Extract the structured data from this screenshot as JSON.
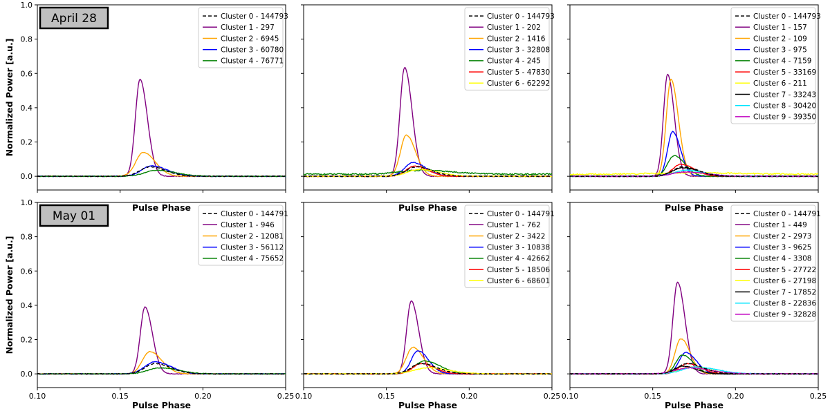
{
  "figure": {
    "ylabel": "Normalized Power [a.u.]",
    "xlabel": "Pulse Phase",
    "x_ticks": [
      0.1,
      0.15,
      0.2,
      0.25
    ],
    "y_ticks": [
      0.0,
      0.2,
      0.4,
      0.6,
      0.8,
      1.0
    ],
    "xlim": [
      0.1,
      0.25
    ],
    "ylim": [
      -0.08,
      1.0
    ],
    "row_labels": [
      "April 28",
      "May 01"
    ]
  },
  "colors": {
    "Cluster 0": "#000000",
    "Cluster 1": "#800080",
    "Cluster 2": "#ffa500",
    "Cluster 3": "#0000ff",
    "Cluster 4": "#008000",
    "Cluster 5": "#ff0000",
    "Cluster 6": "#ffff00",
    "Cluster 7": "#000000",
    "Cluster 8": "#00e5ff",
    "Cluster 9": "#c000c0"
  },
  "chart_data": [
    {
      "type": "line",
      "row": 0,
      "col": 0,
      "grid": false,
      "legend_position": "top-right",
      "series": [
        {
          "name": "Cluster 0 - 144793",
          "dashed": true,
          "peak_x": 0.168,
          "peak_y": 0.055,
          "width": 0.006
        },
        {
          "name": "Cluster 1 - 297",
          "peak_x": 0.162,
          "peak_y": 0.565,
          "width": 0.0028
        },
        {
          "name": "Cluster 2 - 6945",
          "peak_x": 0.164,
          "peak_y": 0.14,
          "width": 0.0045
        },
        {
          "name": "Cluster 3 - 60780",
          "peak_x": 0.169,
          "peak_y": 0.06,
          "width": 0.006
        },
        {
          "name": "Cluster 4 - 76771",
          "peak_x": 0.172,
          "peak_y": 0.035,
          "width": 0.007
        }
      ]
    },
    {
      "type": "line",
      "row": 0,
      "col": 1,
      "grid": false,
      "legend_position": "top-right",
      "series": [
        {
          "name": "Cluster 0 - 144793",
          "dashed": true,
          "peak_x": 0.168,
          "peak_y": 0.055,
          "width": 0.006
        },
        {
          "name": "Cluster 1 - 202",
          "peak_x": 0.161,
          "peak_y": 0.635,
          "width": 0.0028
        },
        {
          "name": "Cluster 2 - 1416",
          "peak_x": 0.162,
          "peak_y": 0.24,
          "width": 0.0035
        },
        {
          "name": "Cluster 3 - 32808",
          "peak_x": 0.166,
          "peak_y": 0.08,
          "width": 0.005
        },
        {
          "name": "Cluster 4 - 245",
          "peak_x": 0.17,
          "peak_y": 0.035,
          "width": 0.012,
          "baseline": 0.012
        },
        {
          "name": "Cluster 5 - 47830",
          "peak_x": 0.167,
          "peak_y": 0.06,
          "width": 0.005
        },
        {
          "name": "Cluster 6 - 62292",
          "peak_x": 0.17,
          "peak_y": 0.04,
          "width": 0.007
        }
      ]
    },
    {
      "type": "line",
      "row": 0,
      "col": 2,
      "grid": false,
      "legend_position": "top-right",
      "series": [
        {
          "name": "Cluster 0 - 144793",
          "dashed": true,
          "peak_x": 0.168,
          "peak_y": 0.055,
          "width": 0.006
        },
        {
          "name": "Cluster 1 - 157",
          "peak_x": 0.159,
          "peak_y": 0.595,
          "width": 0.0025
        },
        {
          "name": "Cluster 2 - 109",
          "peak_x": 0.161,
          "peak_y": 0.565,
          "width": 0.0028
        },
        {
          "name": "Cluster 3 - 975",
          "peak_x": 0.162,
          "peak_y": 0.26,
          "width": 0.003
        },
        {
          "name": "Cluster 4 - 7159",
          "peak_x": 0.163,
          "peak_y": 0.12,
          "width": 0.004
        },
        {
          "name": "Cluster 5 - 33169",
          "peak_x": 0.167,
          "peak_y": 0.07,
          "width": 0.005
        },
        {
          "name": "Cluster 6 - 211",
          "peak_x": 0.17,
          "peak_y": 0.02,
          "width": 0.02,
          "baseline": 0.012
        },
        {
          "name": "Cluster 7 - 33243",
          "peak_x": 0.168,
          "peak_y": 0.05,
          "width": 0.006
        },
        {
          "name": "Cluster 8 - 30420",
          "peak_x": 0.17,
          "peak_y": 0.035,
          "width": 0.007
        },
        {
          "name": "Cluster 9 - 39350",
          "peak_x": 0.17,
          "peak_y": 0.025,
          "width": 0.008
        }
      ]
    },
    {
      "type": "line",
      "row": 1,
      "col": 0,
      "grid": false,
      "legend_position": "top-right",
      "series": [
        {
          "name": "Cluster 0 - 144791",
          "dashed": true,
          "peak_x": 0.171,
          "peak_y": 0.06,
          "width": 0.006
        },
        {
          "name": "Cluster 1 - 946",
          "peak_x": 0.165,
          "peak_y": 0.39,
          "width": 0.0028
        },
        {
          "name": "Cluster 2 - 12081",
          "peak_x": 0.168,
          "peak_y": 0.13,
          "width": 0.0045
        },
        {
          "name": "Cluster 3 - 56112",
          "peak_x": 0.171,
          "peak_y": 0.07,
          "width": 0.006
        },
        {
          "name": "Cluster 4 - 75652",
          "peak_x": 0.174,
          "peak_y": 0.035,
          "width": 0.007
        }
      ]
    },
    {
      "type": "line",
      "row": 1,
      "col": 1,
      "grid": false,
      "legend_position": "top-right",
      "series": [
        {
          "name": "Cluster 0 - 144791",
          "dashed": true,
          "peak_x": 0.171,
          "peak_y": 0.06,
          "width": 0.006
        },
        {
          "name": "Cluster 1 - 762",
          "peak_x": 0.165,
          "peak_y": 0.425,
          "width": 0.0028
        },
        {
          "name": "Cluster 2 - 3422",
          "peak_x": 0.166,
          "peak_y": 0.155,
          "width": 0.004
        },
        {
          "name": "Cluster 3 - 10838",
          "peak_x": 0.169,
          "peak_y": 0.135,
          "width": 0.004
        },
        {
          "name": "Cluster 4 - 42662",
          "peak_x": 0.173,
          "peak_y": 0.075,
          "width": 0.006
        },
        {
          "name": "Cluster 5 - 18506",
          "peak_x": 0.171,
          "peak_y": 0.06,
          "width": 0.005
        },
        {
          "name": "Cluster 6 - 68601",
          "peak_x": 0.175,
          "peak_y": 0.035,
          "width": 0.008
        }
      ]
    },
    {
      "type": "line",
      "row": 1,
      "col": 2,
      "grid": false,
      "legend_position": "top-right",
      "series": [
        {
          "name": "Cluster 0 - 144791",
          "dashed": true,
          "peak_x": 0.171,
          "peak_y": 0.06,
          "width": 0.006
        },
        {
          "name": "Cluster 1 - 449",
          "peak_x": 0.165,
          "peak_y": 0.535,
          "width": 0.0028
        },
        {
          "name": "Cluster 2 - 2973",
          "peak_x": 0.167,
          "peak_y": 0.205,
          "width": 0.0035
        },
        {
          "name": "Cluster 3 - 9625",
          "peak_x": 0.17,
          "peak_y": 0.125,
          "width": 0.004
        },
        {
          "name": "Cluster 4 - 3308",
          "peak_x": 0.168,
          "peak_y": 0.11,
          "width": 0.004
        },
        {
          "name": "Cluster 5 - 27722",
          "peak_x": 0.171,
          "peak_y": 0.06,
          "width": 0.005
        },
        {
          "name": "Cluster 6 - 27198",
          "peak_x": 0.173,
          "peak_y": 0.04,
          "width": 0.007
        },
        {
          "name": "Cluster 7 - 17852",
          "peak_x": 0.168,
          "peak_y": 0.045,
          "width": 0.005
        },
        {
          "name": "Cluster 8 - 22836",
          "peak_x": 0.176,
          "peak_y": 0.04,
          "width": 0.008
        },
        {
          "name": "Cluster 9 - 32828",
          "peak_x": 0.172,
          "peak_y": 0.035,
          "width": 0.008
        }
      ]
    }
  ]
}
